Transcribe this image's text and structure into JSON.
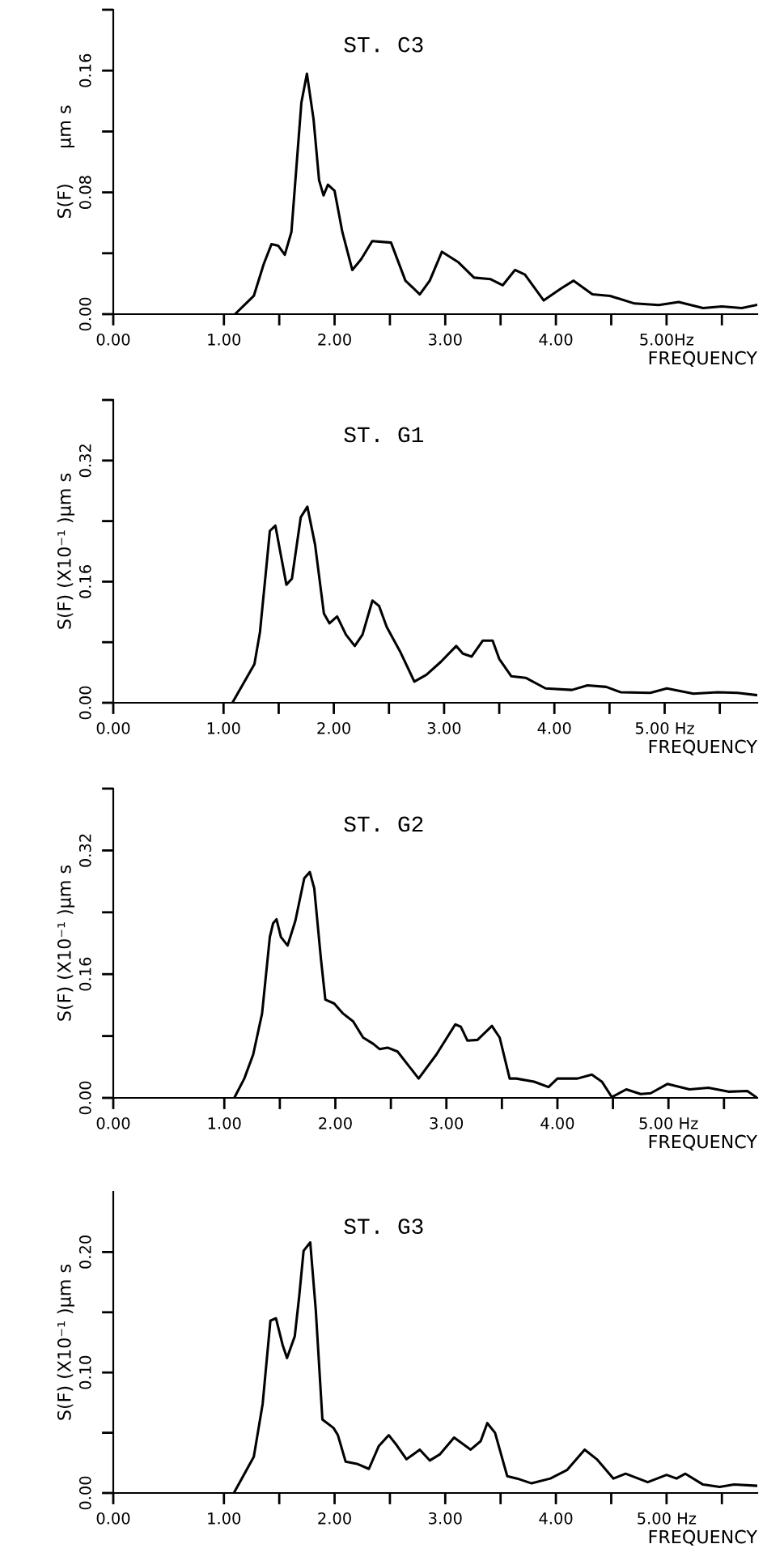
{
  "chart_data": [
    {
      "type": "line",
      "title": "ST. C3",
      "xlabel": "FREQUENCY",
      "ylabel": "S(F)      μm s",
      "color": "#000000",
      "grid": false,
      "legend": false,
      "marker": "none",
      "line_style": "solid",
      "xlim": [
        0,
        5.82
      ],
      "xticks": [
        {
          "value": 0,
          "label": "0.00"
        },
        {
          "value": 1,
          "label": "1.00"
        },
        {
          "value": 1.5,
          "label": null
        },
        {
          "value": 2,
          "label": "2.00"
        },
        {
          "value": 2.5,
          "label": null
        },
        {
          "value": 3,
          "label": "3.00"
        },
        {
          "value": 3.5,
          "label": null
        },
        {
          "value": 4,
          "label": "4.00"
        },
        {
          "value": 4.5,
          "label": null
        },
        {
          "value": 5,
          "label": "5.00Hz"
        },
        {
          "value": 5.5,
          "label": null
        }
      ],
      "ylim": [
        0,
        0.2
      ],
      "yticks": [
        {
          "value": 0,
          "label": "0.00"
        },
        {
          "value": 0.04,
          "label": null
        },
        {
          "value": 0.08,
          "label": "0.08"
        },
        {
          "value": 0.12,
          "label": null
        },
        {
          "value": 0.16,
          "label": "0.16"
        },
        {
          "value": 0.2,
          "label": null
        }
      ],
      "x": [
        1.1,
        1.27,
        1.36,
        1.43,
        1.49,
        1.55,
        1.61,
        1.7,
        1.75,
        1.81,
        1.86,
        1.9,
        1.94,
        2.0,
        2.07,
        2.16,
        2.24,
        2.34,
        2.51,
        2.64,
        2.77,
        2.86,
        2.97,
        3.12,
        3.26,
        3.41,
        3.52,
        3.63,
        3.72,
        3.89,
        4.05,
        4.16,
        4.33,
        4.49,
        4.71,
        4.93,
        5.11,
        5.33,
        5.5,
        5.68,
        5.81
      ],
      "values": [
        0,
        0.012,
        0.033,
        0.046,
        0.045,
        0.039,
        0.054,
        0.139,
        0.158,
        0.128,
        0.088,
        0.078,
        0.085,
        0.081,
        0.054,
        0.029,
        0.036,
        0.048,
        0.047,
        0.022,
        0.013,
        0.022,
        0.041,
        0.034,
        0.024,
        0.023,
        0.019,
        0.029,
        0.026,
        0.009,
        0.017,
        0.022,
        0.013,
        0.012,
        0.007,
        0.006,
        0.008,
        0.004,
        0.005,
        0.004,
        0.006
      ]
    },
    {
      "type": "line",
      "title": "ST. G1",
      "xlabel": "FREQUENCY",
      "ylabel": "S(F) (X10⁻¹ )μm s",
      "color": "#000000",
      "grid": false,
      "legend": false,
      "marker": "none",
      "line_style": "solid",
      "xlim": [
        0,
        5.84
      ],
      "xticks": [
        {
          "value": 0,
          "label": "0.00"
        },
        {
          "value": 1,
          "label": "1.00"
        },
        {
          "value": 1.5,
          "label": null
        },
        {
          "value": 2,
          "label": "2.00"
        },
        {
          "value": 2.5,
          "label": null
        },
        {
          "value": 3,
          "label": "3.00"
        },
        {
          "value": 3.5,
          "label": null
        },
        {
          "value": 4,
          "label": "4.00"
        },
        {
          "value": 4.5,
          "label": null
        },
        {
          "value": 5,
          "label": "5.00 Hz"
        },
        {
          "value": 5.5,
          "label": null
        }
      ],
      "ylim": [
        0,
        0.4
      ],
      "yticks": [
        {
          "value": 0,
          "label": "0.00"
        },
        {
          "value": 0.08,
          "label": null
        },
        {
          "value": 0.16,
          "label": "0.16"
        },
        {
          "value": 0.24,
          "label": null
        },
        {
          "value": 0.32,
          "label": "0.32"
        },
        {
          "value": 0.4,
          "label": null
        }
      ],
      "x": [
        1.08,
        1.28,
        1.33,
        1.38,
        1.42,
        1.47,
        1.52,
        1.57,
        1.62,
        1.7,
        1.76,
        1.83,
        1.91,
        1.96,
        2.03,
        2.11,
        2.19,
        2.26,
        2.35,
        2.41,
        2.48,
        2.6,
        2.73,
        2.84,
        2.97,
        3.11,
        3.17,
        3.25,
        3.35,
        3.44,
        3.5,
        3.61,
        3.74,
        3.92,
        4.16,
        4.3,
        4.47,
        4.6,
        4.87,
        5.02,
        5.26,
        5.48,
        5.66,
        5.84
      ],
      "values": [
        0,
        0.051,
        0.093,
        0.167,
        0.227,
        0.234,
        0.195,
        0.156,
        0.164,
        0.245,
        0.259,
        0.209,
        0.118,
        0.105,
        0.114,
        0.09,
        0.075,
        0.09,
        0.135,
        0.128,
        0.1,
        0.068,
        0.028,
        0.037,
        0.054,
        0.075,
        0.065,
        0.061,
        0.082,
        0.082,
        0.058,
        0.035,
        0.033,
        0.019,
        0.017,
        0.023,
        0.021,
        0.014,
        0.013,
        0.019,
        0.012,
        0.014,
        0.013,
        0.01
      ]
    },
    {
      "type": "line",
      "title": "ST. G2",
      "xlabel": "FREQUENCY",
      "ylabel": "S(F) (X10⁻¹ )μm s",
      "color": "#000000",
      "grid": false,
      "legend": false,
      "marker": "none",
      "line_style": "solid",
      "xlim": [
        0,
        5.8
      ],
      "xticks": [
        {
          "value": 0,
          "label": "0.00"
        },
        {
          "value": 1,
          "label": "1.00"
        },
        {
          "value": 1.5,
          "label": null
        },
        {
          "value": 2,
          "label": "2.00"
        },
        {
          "value": 2.5,
          "label": null
        },
        {
          "value": 3,
          "label": "3.00"
        },
        {
          "value": 3.5,
          "label": null
        },
        {
          "value": 4,
          "label": "4.00"
        },
        {
          "value": 4.5,
          "label": null
        },
        {
          "value": 5,
          "label": "5.00 Hz"
        },
        {
          "value": 5.5,
          "label": null
        }
      ],
      "ylim": [
        0,
        0.4
      ],
      "yticks": [
        {
          "value": 0,
          "label": "0.00"
        },
        {
          "value": 0.08,
          "label": null
        },
        {
          "value": 0.16,
          "label": "0.16"
        },
        {
          "value": 0.24,
          "label": null
        },
        {
          "value": 0.32,
          "label": "0.32"
        },
        {
          "value": 0.4,
          "label": null
        }
      ],
      "x": [
        1.09,
        1.18,
        1.26,
        1.34,
        1.41,
        1.44,
        1.47,
        1.51,
        1.57,
        1.64,
        1.72,
        1.77,
        1.81,
        1.87,
        1.91,
        1.99,
        2.07,
        2.16,
        2.25,
        2.34,
        2.4,
        2.47,
        2.56,
        2.75,
        2.91,
        3.08,
        3.13,
        3.19,
        3.28,
        3.41,
        3.48,
        3.57,
        3.63,
        3.79,
        3.92,
        4.0,
        4.18,
        4.31,
        4.4,
        4.49,
        4.62,
        4.75,
        4.84,
        4.99,
        5.19,
        5.36,
        5.54,
        5.71,
        5.8
      ],
      "values": [
        0,
        0.025,
        0.056,
        0.109,
        0.208,
        0.226,
        0.231,
        0.208,
        0.197,
        0.229,
        0.284,
        0.292,
        0.271,
        0.18,
        0.127,
        0.122,
        0.109,
        0.099,
        0.078,
        0.07,
        0.063,
        0.065,
        0.06,
        0.025,
        0.056,
        0.095,
        0.092,
        0.074,
        0.075,
        0.093,
        0.078,
        0.025,
        0.025,
        0.021,
        0.014,
        0.025,
        0.025,
        0.03,
        0.021,
        0.001,
        0.011,
        0.005,
        0.006,
        0.018,
        0.011,
        0.013,
        0.008,
        0.009,
        0
      ]
    },
    {
      "type": "line",
      "title": "ST. G3",
      "xlabel": "FREQUENCY",
      "ylabel": "S(F) (X10⁻¹ )μm s",
      "color": "#000000",
      "grid": false,
      "legend": false,
      "marker": "none",
      "line_style": "solid",
      "xlim": [
        0,
        5.82
      ],
      "xticks": [
        {
          "value": 0,
          "label": "0.00"
        },
        {
          "value": 1,
          "label": "1.00"
        },
        {
          "value": 1.5,
          "label": null
        },
        {
          "value": 2,
          "label": "2.00"
        },
        {
          "value": 2.5,
          "label": null
        },
        {
          "value": 3,
          "label": "3.00"
        },
        {
          "value": 3.5,
          "label": null
        },
        {
          "value": 4,
          "label": "4.00"
        },
        {
          "value": 4.5,
          "label": null
        },
        {
          "value": 5,
          "label": "5.00 Hz"
        },
        {
          "value": 5.5,
          "label": null
        }
      ],
      "ylim": [
        0,
        0.25
      ],
      "yticks": [
        {
          "value": 0,
          "label": "0.00"
        },
        {
          "value": 0.05,
          "label": null
        },
        {
          "value": 0.1,
          "label": "0.10"
        },
        {
          "value": 0.15,
          "label": null
        },
        {
          "value": 0.2,
          "label": "0.20"
        }
      ],
      "x": [
        1.09,
        1.27,
        1.35,
        1.42,
        1.47,
        1.53,
        1.57,
        1.64,
        1.68,
        1.72,
        1.78,
        1.83,
        1.89,
        1.99,
        2.03,
        2.1,
        2.21,
        2.31,
        2.4,
        2.49,
        2.55,
        2.65,
        2.77,
        2.86,
        2.95,
        3.08,
        3.23,
        3.32,
        3.38,
        3.45,
        3.56,
        3.65,
        3.78,
        3.95,
        4.1,
        4.26,
        4.37,
        4.52,
        4.63,
        4.83,
        5.0,
        5.09,
        5.17,
        5.33,
        5.48,
        5.61,
        5.81
      ],
      "values": [
        0,
        0.03,
        0.074,
        0.143,
        0.145,
        0.123,
        0.112,
        0.13,
        0.163,
        0.201,
        0.208,
        0.152,
        0.061,
        0.054,
        0.048,
        0.026,
        0.024,
        0.02,
        0.039,
        0.048,
        0.041,
        0.028,
        0.036,
        0.027,
        0.032,
        0.046,
        0.036,
        0.043,
        0.058,
        0.05,
        0.014,
        0.012,
        0.008,
        0.012,
        0.019,
        0.036,
        0.028,
        0.012,
        0.016,
        0.009,
        0.015,
        0.012,
        0.016,
        0.007,
        0.005,
        0.007,
        0.006
      ]
    }
  ]
}
